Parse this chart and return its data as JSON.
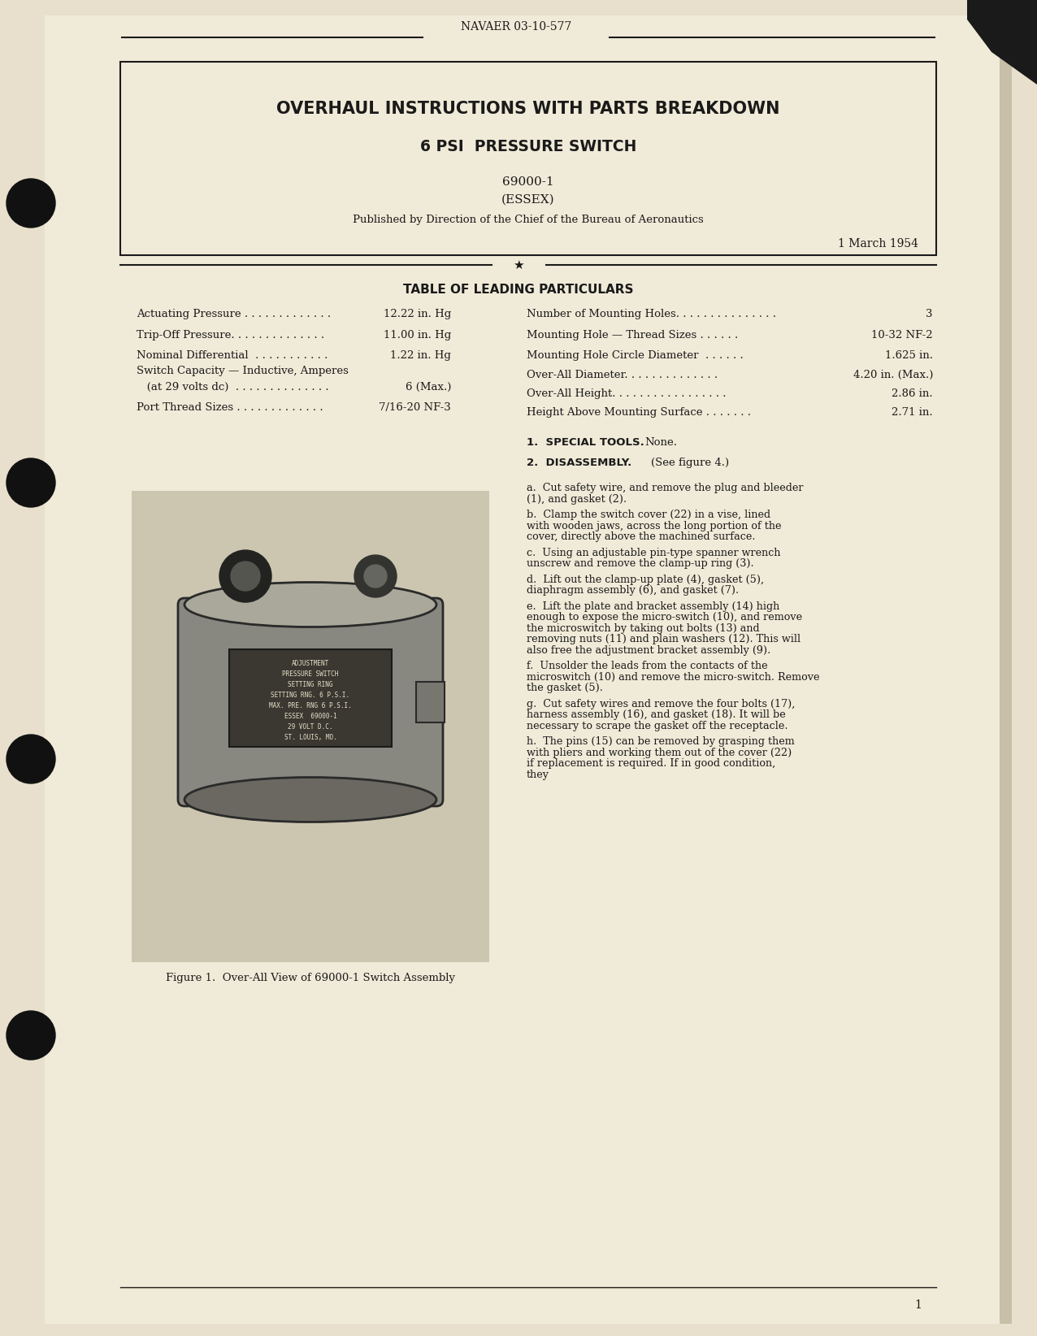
{
  "bg_color": "#f0ead8",
  "page_bg": "#e8e0cc",
  "text_color": "#1a1a1a",
  "header_text": "NAVAER 03-10-577",
  "title1": "OVERHAUL INSTRUCTIONS WITH PARTS BREAKDOWN",
  "title2": "6 PSI  PRESSURE SWITCH",
  "part_number": "69000-1",
  "manufacturer": "(ESSEX)",
  "published_by": "Published by Direction of the Chief of the Bureau of Aeronautics",
  "date": "1 March 1954",
  "table_heading": "TABLE OF LEADING PARTICULARS",
  "left_particulars": [
    [
      "Actuating Pressure . . . . . . . . . . . . .",
      "12.22 in. Hg"
    ],
    [
      "Trip-Off Pressure. . . . . . . . . . . . . .",
      "11.00 in. Hg"
    ],
    [
      "Nominal Differential  . . . . . . . . . . .",
      "1.22 in. Hg"
    ],
    [
      "Switch Capacity — Inductive, Amperes",
      ""
    ],
    [
      "   (at 29 volts dc)  . . . . . . . . . . . . . .",
      "6 (Max.)"
    ],
    [
      "Port Thread Sizes . . . . . . . . . . . . .",
      "7/16-20 NF-3"
    ]
  ],
  "right_particulars": [
    [
      "Number of Mounting Holes. . . . . . . . . . . . . . .",
      "3"
    ],
    [
      "Mounting Hole — Thread Sizes . . . . . .",
      "10-32 NF-2"
    ],
    [
      "Mounting Hole Circle Diameter  . . . . . .",
      "1.625 in."
    ],
    [
      "Over-All Diameter. . . . . . . . . . . . . .",
      "4.20 in. (Max.)"
    ],
    [
      "Over-All Height. . . . . . . . . . . . . . . . .",
      "2.86 in."
    ],
    [
      "Height Above Mounting Surface . . . . . . .",
      "2.71 in."
    ]
  ],
  "section1_title": "1.  SPECIAL TOOLS.",
  "section1_text": "None.",
  "section2_title": "2.  DISASSEMBLY.",
  "section2_subtitle": "(See figure 4.)",
  "disassembly_steps": [
    "a.  Cut safety wire, and remove the plug and bleeder (1), and gasket (2).",
    "b.  Clamp the switch cover (22) in a vise, lined with wooden jaws, across the long portion of the cover, directly above the machined surface.",
    "c.  Using an adjustable pin-type spanner wrench unscrew and remove the clamp-up ring (3).",
    "d.  Lift out the clamp-up plate (4), gasket (5), diaphragm assembly (6), and gasket (7).",
    "e.  Lift the plate and bracket assembly (14) high enough to expose the micro-switch (10), and remove the microswitch by taking out bolts (13) and removing nuts (11) and plain washers (12). This will also free the adjustment bracket assembly (9).",
    "f.  Unsolder the leads from the contacts of the microswitch (10) and remove the micro-switch. Remove the gasket (5).",
    "g.  Cut safety wires and remove the four bolts (17), harness assembly (16), and gasket (18). It will be necessary to scrape the gasket off the receptacle.",
    "h.  The pins (15) can be removed by grasping them with pliers and working them out of the cover (22) if replacement is required. If in good condition, they"
  ],
  "fig_caption": "Figure 1.  Over-All View of 69000-1 Switch Assembly",
  "page_number": "1"
}
